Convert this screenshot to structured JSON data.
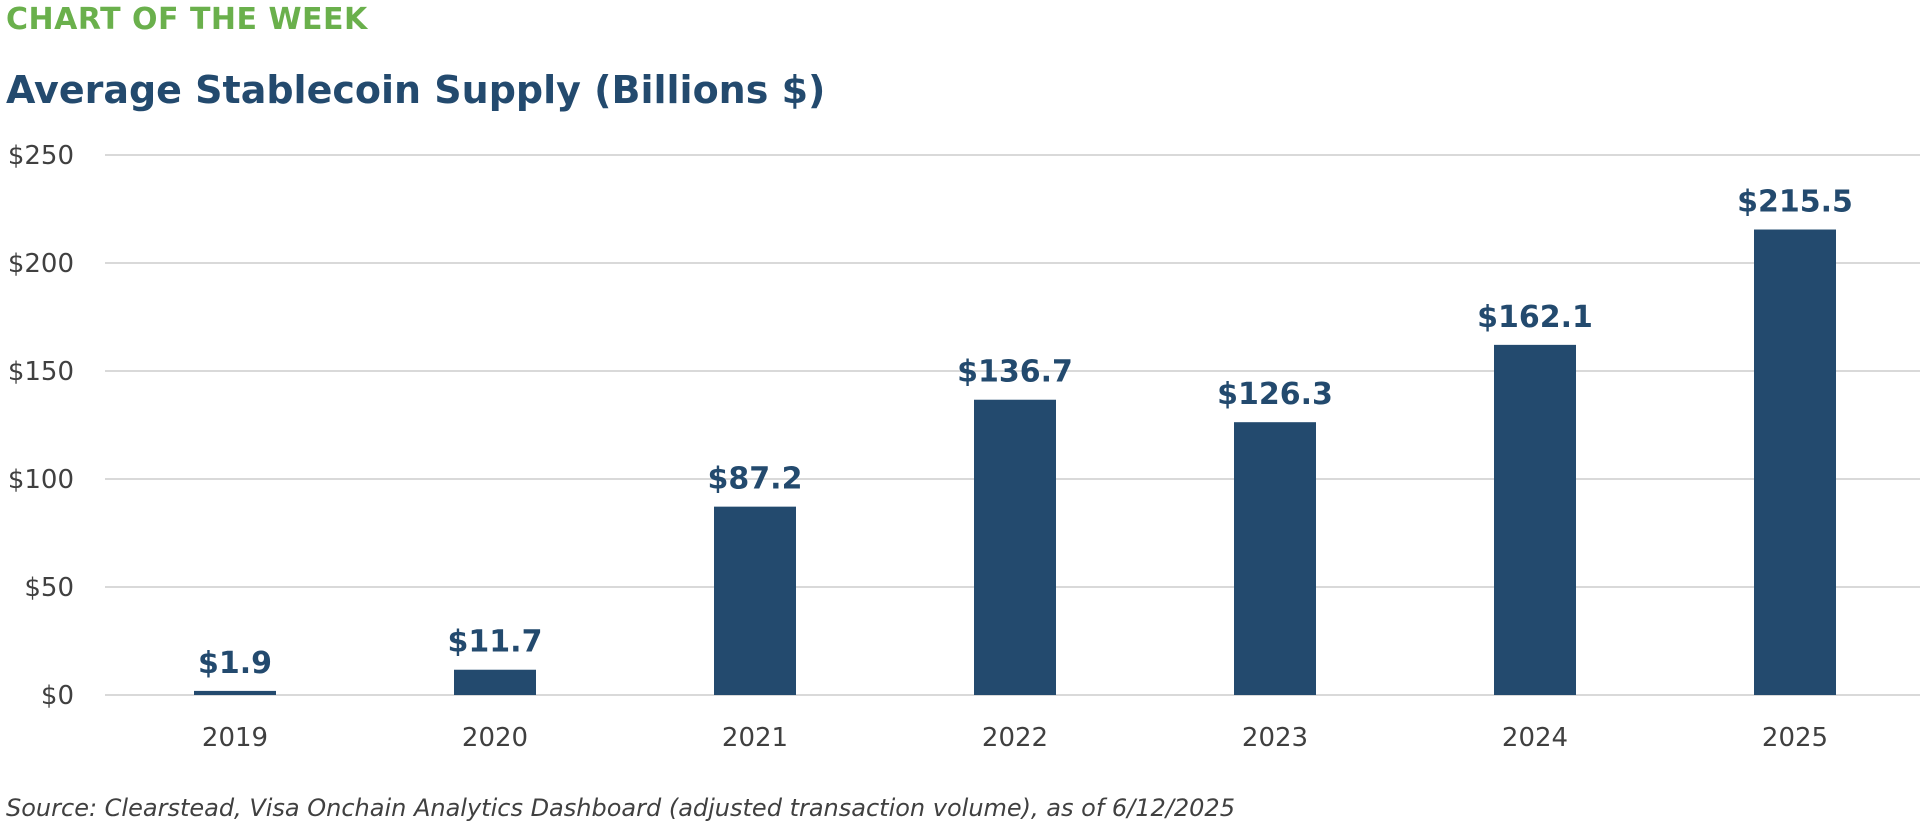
{
  "header": {
    "kicker": "CHART OF THE WEEK",
    "title": "Average Stablecoin Supply (Billions $)"
  },
  "footer": {
    "source": "Source: Clearstead, Visa Onchain Analytics Dashboard (adjusted transaction volume), as of 6/12/2025"
  },
  "colors": {
    "bar": "#234a6e",
    "grid": "#d9d9d9",
    "kicker": "#6ab04c"
  },
  "chart_data": {
    "type": "bar",
    "categories": [
      "2019",
      "2020",
      "2021",
      "2022",
      "2023",
      "2024",
      "2025"
    ],
    "values": [
      1.9,
      11.7,
      87.2,
      136.7,
      126.3,
      162.1,
      215.5
    ],
    "data_labels": [
      "$1.9",
      "$11.7",
      "$87.2",
      "$136.7",
      "$126.3",
      "$162.1",
      "$215.5"
    ],
    "yticks": [
      0,
      50,
      100,
      150,
      200,
      250
    ],
    "ytick_labels": [
      "$0",
      "$50",
      "$100",
      "$150",
      "$200",
      "$250"
    ],
    "ylim": [
      0,
      250
    ],
    "grid": true,
    "legend": "none"
  }
}
